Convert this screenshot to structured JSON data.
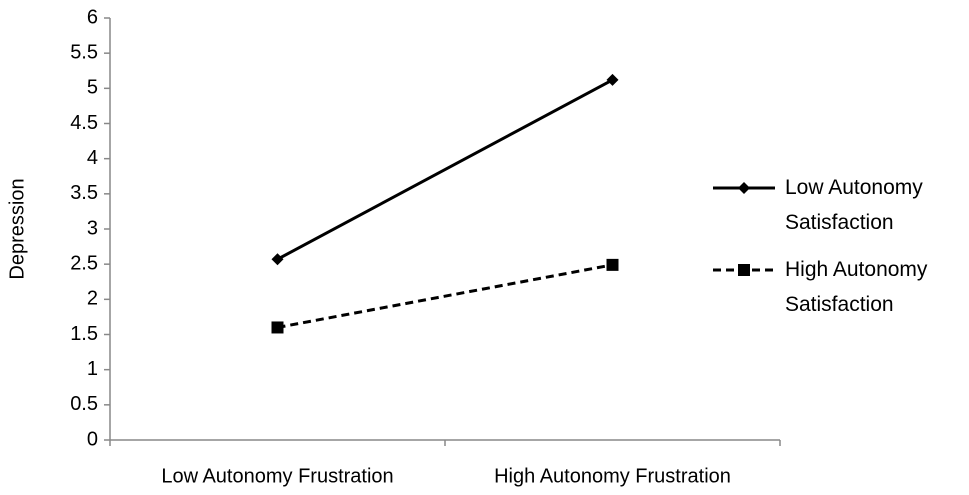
{
  "chart_data": {
    "type": "line",
    "categories": [
      "Low Autonomy Frustration",
      "High Autonomy Frustration"
    ],
    "y_label": "Depression",
    "series": [
      {
        "name": "Low Autonomy Satisfaction",
        "color": "#000000",
        "line_style": "solid",
        "marker": "diamond",
        "values": [
          2.57,
          5.12
        ]
      },
      {
        "name": "High Autonomy Satisfaction",
        "color": "#000000",
        "line_style": "dashed",
        "marker": "square",
        "values": [
          1.6,
          2.49
        ]
      }
    ],
    "ylim": [
      0,
      6
    ],
    "yticks": [
      0,
      0.5,
      1,
      1.5,
      2,
      2.5,
      3,
      3.5,
      4,
      4.5,
      5,
      5.5,
      6
    ],
    "grid": false,
    "legend": "right"
  }
}
